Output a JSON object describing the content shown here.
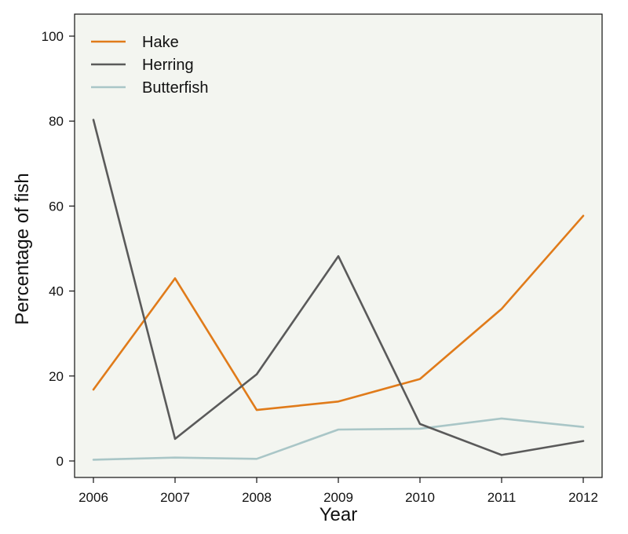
{
  "chart_data": {
    "type": "line",
    "xlabel": "Year",
    "ylabel": "Percentage of fish",
    "xlim": [
      2006,
      2012
    ],
    "ylim": [
      0,
      100
    ],
    "categories": [
      "2006",
      "2007",
      "2008",
      "2009",
      "2010",
      "2011",
      "2012"
    ],
    "x": [
      2006,
      2007,
      2008,
      2009,
      2010,
      2011,
      2012
    ],
    "y_ticks": [
      "0",
      "20",
      "40",
      "60",
      "80",
      "100"
    ],
    "grid": false,
    "legend_position": "top-left",
    "background_color": "#f3f5f0",
    "series": [
      {
        "name": "Hake",
        "color": "#e07b1a",
        "values": [
          16.8,
          43.0,
          12.0,
          14.0,
          19.3,
          35.8,
          57.7
        ]
      },
      {
        "name": "Herring",
        "color": "#5a5a5a",
        "values": [
          80.3,
          5.2,
          20.4,
          48.2,
          8.7,
          1.4,
          4.7
        ]
      },
      {
        "name": "Butterfish",
        "color": "#a9c6c7",
        "values": [
          0.3,
          0.8,
          0.5,
          7.4,
          7.6,
          10.0,
          8.0
        ]
      }
    ]
  }
}
